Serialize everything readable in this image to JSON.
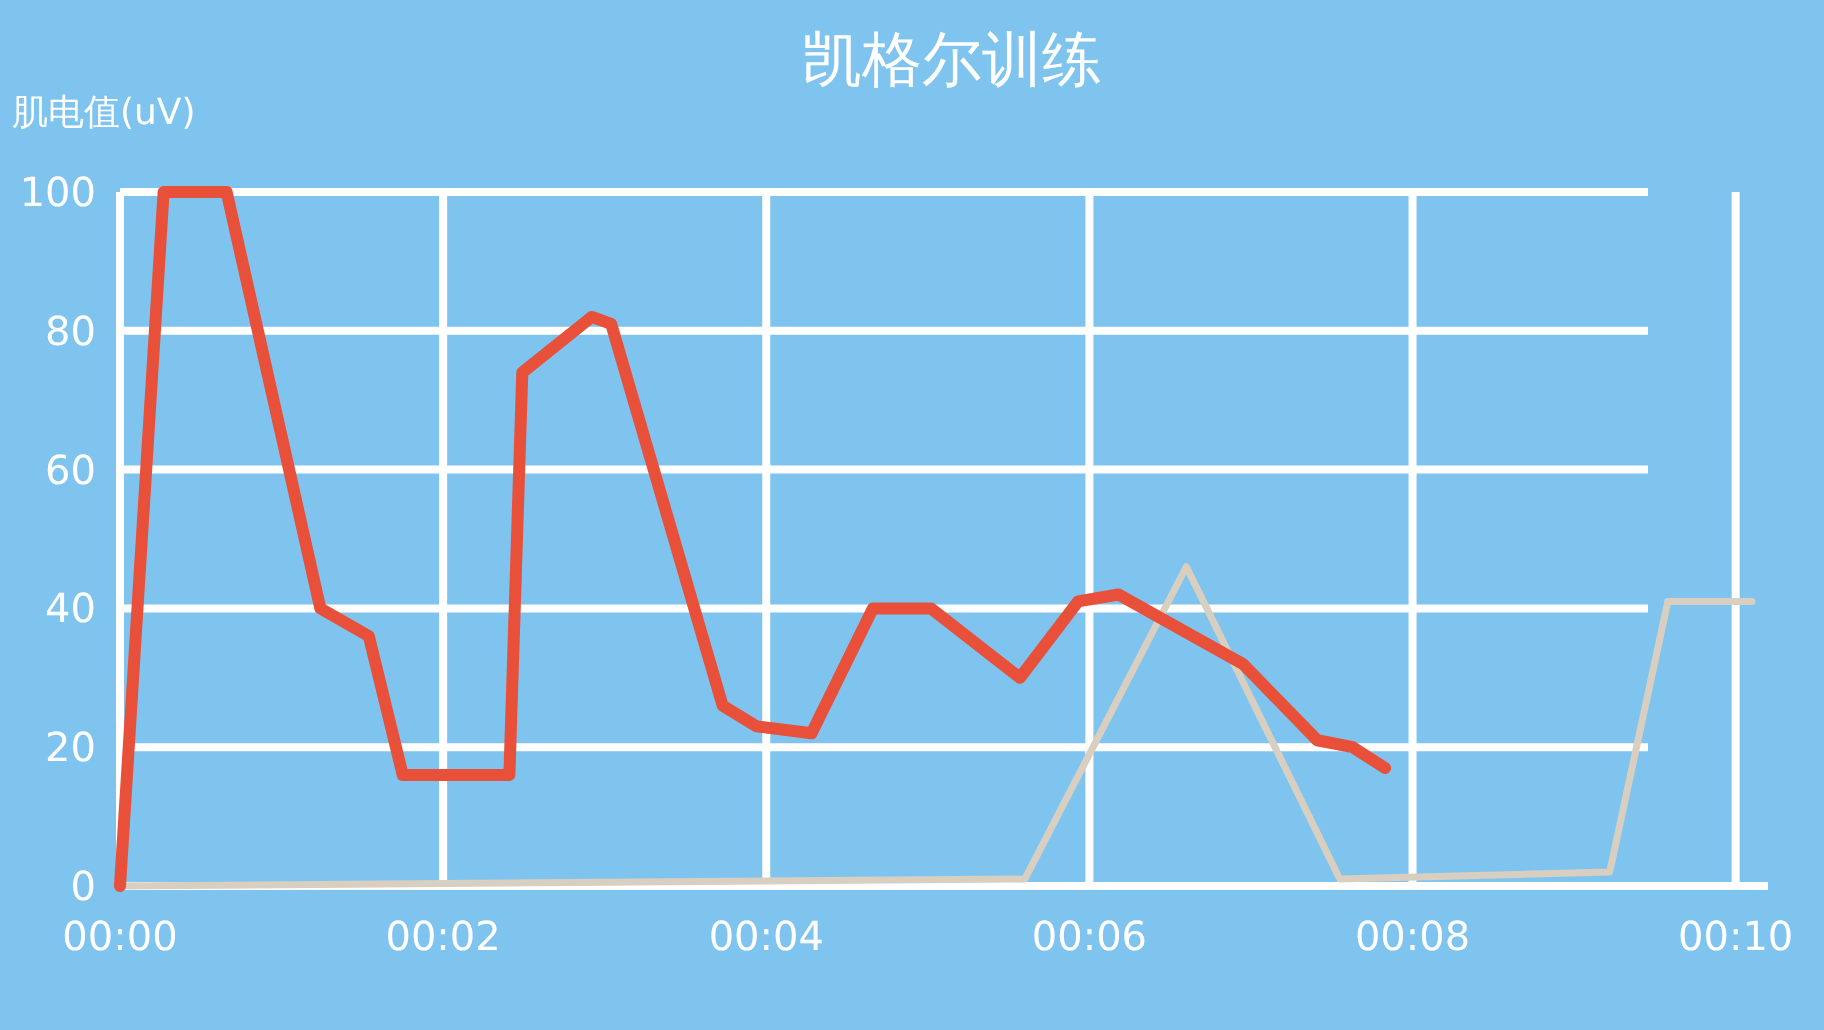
{
  "chart_data": {
    "type": "line",
    "title": "凯格尔训练",
    "ylabel": "肌电值(uV)",
    "xlim": [
      0,
      10.2
    ],
    "xticks": [
      {
        "value": 0,
        "label": "00:00"
      },
      {
        "value": 2,
        "label": "00:02"
      },
      {
        "value": 4,
        "label": "00:04"
      },
      {
        "value": 6,
        "label": "00:06"
      },
      {
        "value": 8,
        "label": "00:08"
      },
      {
        "value": 10,
        "label": "00:10"
      }
    ],
    "ylim": [
      0,
      100
    ],
    "yticks": [
      0,
      20,
      40,
      60,
      80,
      100
    ],
    "grid": true,
    "marker": "none",
    "line_style": "solid",
    "series": [
      {
        "color": "#e8503a",
        "x": [
          0,
          0.27,
          0.66,
          1.24,
          1.54,
          1.75,
          2.41,
          2.49,
          2.92,
          3.04,
          3.73,
          3.94,
          4.28,
          4.66,
          5.02,
          5.57,
          5.93,
          6.18,
          6.95,
          7.41,
          7.63,
          7.83
        ],
        "values": [
          0,
          100,
          100,
          40,
          36,
          16,
          16,
          74,
          82,
          81,
          26,
          23,
          22,
          40,
          40,
          30,
          41,
          42,
          32,
          21,
          20,
          17
        ]
      },
      {
        "color": "#d9cfc0",
        "x": [
          0,
          5.6,
          6.6,
          7.55,
          9.22,
          9.58,
          10.1
        ],
        "values": [
          0,
          1,
          46,
          1,
          2,
          41,
          41
        ]
      }
    ]
  }
}
